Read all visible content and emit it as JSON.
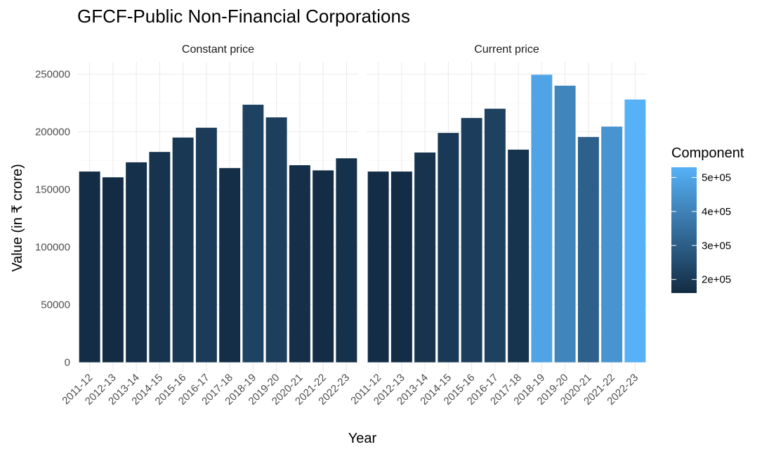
{
  "chart_data": {
    "type": "bar",
    "title": "GFCF-Public Non-Financial Corporations",
    "xlabel": "Year",
    "ylabel": "Value (in ₹ crore)",
    "ylim": [
      0,
      260000
    ],
    "y_ticks": [
      0,
      50000,
      100000,
      150000,
      200000,
      250000
    ],
    "y_tick_labels": [
      "0",
      "50000",
      "100000",
      "150000",
      "200000",
      "250000"
    ],
    "grid": true,
    "categories": [
      "2011-12",
      "2012-13",
      "2013-14",
      "2014-15",
      "2015-16",
      "2016-17",
      "2017-18",
      "2018-19",
      "2019-20",
      "2020-21",
      "2021-22",
      "2022-23"
    ],
    "panels": [
      {
        "name": "Constant price",
        "values": [
          165500,
          160500,
          173500,
          182500,
          195000,
          203500,
          168500,
          223500,
          212500,
          171000,
          166500,
          177000
        ],
        "component": [
          165500,
          160500,
          173500,
          182500,
          195000,
          203500,
          168500,
          223500,
          212500,
          171000,
          166500,
          177000
        ]
      },
      {
        "name": "Current price",
        "values": [
          165500,
          165500,
          182000,
          199000,
          212000,
          220000,
          184500,
          249500,
          240000,
          195500,
          204500,
          228000
        ],
        "component": [
          165500,
          165500,
          182000,
          199000,
          212000,
          220000,
          184500,
          495000,
          411000,
          305000,
          449000,
          529000
        ]
      }
    ],
    "legend": {
      "title": "Component",
      "placement": "right",
      "range": [
        160000,
        530000
      ],
      "ticks": [
        200000,
        300000,
        400000,
        500000
      ],
      "tick_labels": [
        "2e+05",
        "3e+05",
        "4e+05",
        "5e+05"
      ],
      "low_color": "#132B43",
      "high_color": "#56B1F7"
    }
  }
}
